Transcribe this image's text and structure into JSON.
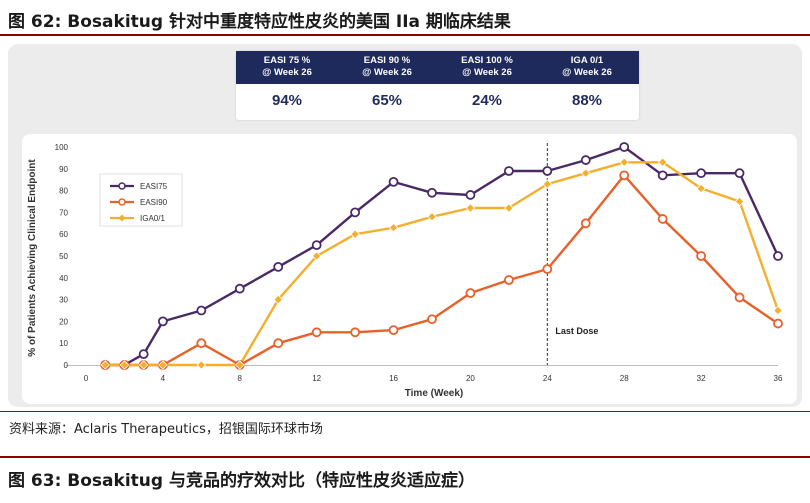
{
  "figure": {
    "title": "图 62: Bosakitug 针对中重度特应性皮炎的美国 IIa 期临床结果",
    "source": "资料来源：Aclaris Therapeutics，招银国际环球市场",
    "next_title": "图 63: Bosakitug 与竞品的疗效对比（特应性皮炎适应症）"
  },
  "stats": [
    {
      "line1": "EASI 75 %",
      "line2": "@ Week 26",
      "value": "94%"
    },
    {
      "line1": "EASI 90 %",
      "line2": "@ Week 26",
      "value": "65%"
    },
    {
      "line1": "EASI 100 %",
      "line2": "@ Week 26",
      "value": "24%"
    },
    {
      "line1": "IGA 0/1",
      "line2": "@ Week 26",
      "value": "88%"
    }
  ],
  "colors": {
    "EASI75": "#4a2a66",
    "EASI90": "#e8602a",
    "IGA0/1": "#f6ae2d",
    "header": "#1f2a5c"
  },
  "chart_data": {
    "type": "line",
    "title": "",
    "xlabel": "Time (Week)",
    "ylabel": "% of Patients Achieving Clinical Endpoint",
    "xlim": [
      0,
      36
    ],
    "ylim": [
      0,
      100
    ],
    "xticks": [
      0,
      4,
      8,
      12,
      16,
      20,
      24,
      28,
      32,
      36
    ],
    "yticks": [
      0,
      10,
      20,
      30,
      40,
      50,
      60,
      70,
      80,
      90,
      100
    ],
    "grid": false,
    "legend": "top-left",
    "annotations": [
      {
        "text": "Last Dose",
        "x": 24
      }
    ],
    "series": [
      {
        "name": "EASI75",
        "color": "#4a2a66",
        "x": [
          1,
          2,
          3,
          4,
          6,
          8,
          10,
          12,
          14,
          16,
          18,
          20,
          22,
          24,
          26,
          28,
          30,
          32,
          34,
          36
        ],
        "y": [
          0,
          0,
          5,
          20,
          25,
          35,
          45,
          55,
          70,
          84,
          79,
          78,
          89,
          89,
          94,
          100,
          87,
          88,
          88,
          50
        ]
      },
      {
        "name": "EASI90",
        "color": "#e8602a",
        "x": [
          1,
          2,
          3,
          4,
          6,
          8,
          10,
          12,
          14,
          16,
          18,
          20,
          22,
          24,
          26,
          28,
          30,
          32,
          34,
          36
        ],
        "y": [
          0,
          0,
          0,
          0,
          10,
          0,
          10,
          15,
          15,
          16,
          21,
          33,
          39,
          44,
          65,
          87,
          67,
          50,
          31,
          19
        ]
      },
      {
        "name": "IGA0/1",
        "color": "#f6ae2d",
        "x": [
          1,
          2,
          3,
          4,
          6,
          8,
          10,
          12,
          14,
          16,
          18,
          20,
          22,
          24,
          26,
          28,
          30,
          32,
          34,
          36
        ],
        "y": [
          0,
          0,
          0,
          0,
          0,
          0,
          30,
          50,
          60,
          63,
          68,
          72,
          72,
          83,
          88,
          93,
          93,
          81,
          75,
          25
        ]
      }
    ]
  }
}
